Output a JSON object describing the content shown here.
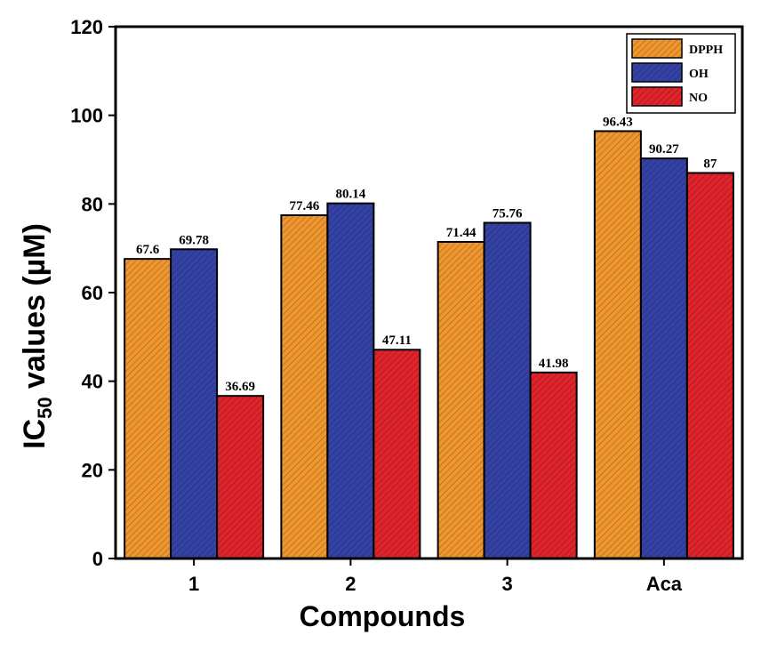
{
  "chart_data": {
    "type": "bar",
    "title": "",
    "xlabel": "Compounds",
    "ylabel_main": "IC",
    "ylabel_sub": "50",
    "ylabel_rest": " values (µM)",
    "ylim": [
      0,
      120
    ],
    "yticks": [
      0,
      20,
      40,
      60,
      80,
      100,
      120
    ],
    "categories": [
      "1",
      "2",
      "3",
      "Aca"
    ],
    "legend_position": "top-right",
    "series": [
      {
        "name": "DPPH",
        "color": "#f0962e",
        "values": [
          67.6,
          77.46,
          71.44,
          96.43
        ],
        "labels": [
          "67.6",
          "77.46",
          "71.44",
          "96.43"
        ]
      },
      {
        "name": "OH",
        "color": "#3442a6",
        "values": [
          69.78,
          80.14,
          75.76,
          90.27
        ],
        "labels": [
          "69.78",
          "80.14",
          "75.76",
          "90.27"
        ]
      },
      {
        "name": "NO",
        "color": "#e0242c",
        "values": [
          36.69,
          47.11,
          41.98,
          87
        ],
        "labels": [
          "36.69",
          "47.11",
          "41.98",
          "87"
        ]
      }
    ]
  }
}
